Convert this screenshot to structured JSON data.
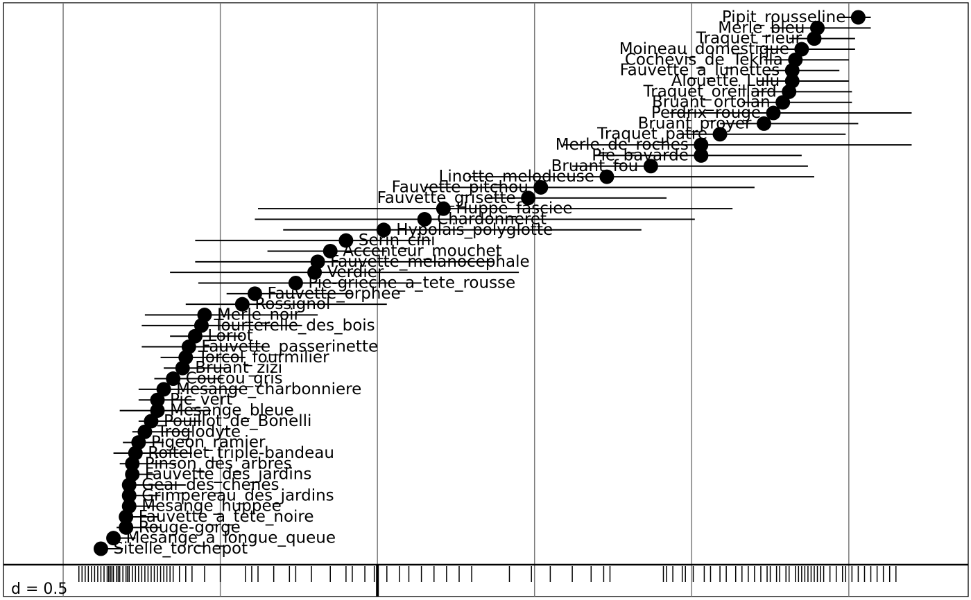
{
  "chart_data": {
    "type": "scatter",
    "scale_label": "d = 0.5",
    "grid": true,
    "x_gridlines": [
      -2.0,
      -1.5,
      -1.0,
      -0.5,
      0.0,
      0.5
    ],
    "xlim": [
      -2.19,
      0.88
    ],
    "species": [
      {
        "name": "Pipit_rousseline",
        "score": 0.53,
        "low": 0.47,
        "high": 0.57,
        "label_side": "left"
      },
      {
        "name": "Merle_bleu",
        "score": 0.4,
        "low": 0.25,
        "high": 0.57,
        "label_side": "left"
      },
      {
        "name": "Traquet_rieur",
        "score": 0.39,
        "low": 0.31,
        "high": 0.52,
        "label_side": "left"
      },
      {
        "name": "Moineau_domestique",
        "score": 0.35,
        "low": 0.23,
        "high": 0.52,
        "label_side": "left"
      },
      {
        "name": "Cochevis_de_Tekhla",
        "score": 0.33,
        "low": 0.23,
        "high": 0.5,
        "label_side": "left"
      },
      {
        "name": "Fauvette_a_lunettes",
        "score": 0.32,
        "low": 0.24,
        "high": 0.47,
        "label_side": "left"
      },
      {
        "name": "Alouette_Lulu",
        "score": 0.32,
        "low": 0.21,
        "high": 0.5,
        "label_side": "left"
      },
      {
        "name": "Traquet_oreillard",
        "score": 0.31,
        "low": 0.19,
        "high": 0.51,
        "label_side": "left"
      },
      {
        "name": "Bruant_ortolan",
        "score": 0.29,
        "low": 0.16,
        "high": 0.51,
        "label_side": "left"
      },
      {
        "name": "Perdrix_rouge",
        "score": 0.26,
        "low": -0.07,
        "high": 0.7,
        "label_side": "left"
      },
      {
        "name": "Bruant_proyer",
        "score": 0.23,
        "low": 0.09,
        "high": 0.53,
        "label_side": "left"
      },
      {
        "name": "Traquet_patre",
        "score": 0.09,
        "low": -0.04,
        "high": 0.49,
        "label_side": "left"
      },
      {
        "name": "Merle_de_roches",
        "score": 0.03,
        "low": -0.41,
        "high": 0.7,
        "label_side": "left"
      },
      {
        "name": "Pie_bavarde",
        "score": 0.03,
        "low": -0.31,
        "high": 0.35,
        "label_side": "left"
      },
      {
        "name": "Bruant_fou",
        "score": -0.13,
        "low": -0.38,
        "high": 0.37,
        "label_side": "left"
      },
      {
        "name": "Linotte_melodieuse",
        "score": -0.27,
        "low": -0.71,
        "high": 0.39,
        "label_side": "left"
      },
      {
        "name": "Fauvette_pitchou",
        "score": -0.48,
        "low": -0.85,
        "high": 0.2,
        "label_side": "left"
      },
      {
        "name": "Fauvette_grisette",
        "score": -0.52,
        "low": -0.65,
        "high": -0.08,
        "label_side": "left"
      },
      {
        "name": "Huppe_fasciee",
        "score": -0.79,
        "low": -1.38,
        "high": 0.13,
        "label_side": "right"
      },
      {
        "name": "Chardonneret",
        "score": -0.85,
        "low": -1.39,
        "high": 0.01,
        "label_side": "right"
      },
      {
        "name": "Hypolais_polyglotte",
        "score": -0.98,
        "low": -1.3,
        "high": -0.16,
        "label_side": "right"
      },
      {
        "name": "Serin_cini",
        "score": -1.1,
        "low": -1.58,
        "high": -0.83,
        "label_side": "right"
      },
      {
        "name": "Accenteur_mouchet",
        "score": -1.15,
        "low": -1.35,
        "high": -0.97,
        "label_side": "right"
      },
      {
        "name": "Fauvette_melanocephale",
        "score": -1.19,
        "low": -1.58,
        "high": -0.63,
        "label_side": "right"
      },
      {
        "name": "Verdier",
        "score": -1.2,
        "low": -1.66,
        "high": -0.55,
        "label_side": "right"
      },
      {
        "name": "Pie-grieche_a_tete_rousse",
        "score": -1.26,
        "low": -1.57,
        "high": -0.86,
        "label_side": "right"
      },
      {
        "name": "Fauvette_orphee",
        "score": -1.39,
        "low": -1.48,
        "high": -1.08,
        "label_side": "right"
      },
      {
        "name": "Rossignol",
        "score": -1.43,
        "low": -1.61,
        "high": -0.97,
        "label_side": "right"
      },
      {
        "name": "Merle_noir",
        "score": -1.55,
        "low": -1.74,
        "high": -1.19,
        "label_side": "right"
      },
      {
        "name": "Tourterelle_des_bois",
        "score": -1.56,
        "low": -1.75,
        "high": -1.24,
        "label_side": "right"
      },
      {
        "name": "Loriot",
        "score": -1.58,
        "low": -1.66,
        "high": -1.43,
        "label_side": "right"
      },
      {
        "name": "Fauvette_passerinette",
        "score": -1.6,
        "low": -1.75,
        "high": -1.36,
        "label_side": "right"
      },
      {
        "name": "Torcol_fourmilier",
        "score": -1.61,
        "low": -1.69,
        "high": -1.42,
        "label_side": "right"
      },
      {
        "name": "Bruant_zizi",
        "score": -1.62,
        "low": -1.68,
        "high": -1.48,
        "label_side": "right"
      },
      {
        "name": "Coucou_gris",
        "score": -1.65,
        "low": -1.71,
        "high": -1.49,
        "label_side": "right"
      },
      {
        "name": "Mesange_charbonniere",
        "score": -1.68,
        "low": -1.76,
        "high": -1.44,
        "label_side": "right"
      },
      {
        "name": "Pic_vert",
        "score": -1.7,
        "low": -1.76,
        "high": -1.58,
        "label_side": "right"
      },
      {
        "name": "Mesange_bleue",
        "score": -1.7,
        "low": -1.82,
        "high": -1.53,
        "label_side": "right"
      },
      {
        "name": "Pouillot_de_Bonelli",
        "score": -1.72,
        "low": -1.76,
        "high": -1.56,
        "label_side": "right"
      },
      {
        "name": "Troglodyte",
        "score": -1.74,
        "low": -1.78,
        "high": -1.59,
        "label_side": "right"
      },
      {
        "name": "Pigeon_ramier",
        "score": -1.76,
        "low": -1.81,
        "high": -1.68,
        "label_side": "right"
      },
      {
        "name": "Roitelet_triple-bandeau",
        "score": -1.77,
        "low": -1.84,
        "high": -1.59,
        "label_side": "right"
      },
      {
        "name": "Pinson_des_arbres",
        "score": -1.78,
        "low": -1.82,
        "high": -1.64,
        "label_side": "right"
      },
      {
        "name": "Fauvette_des_jardins",
        "score": -1.78,
        "low": -1.79,
        "high": -1.71,
        "label_side": "right"
      },
      {
        "name": "Geai_des_chenes",
        "score": -1.79,
        "low": -1.81,
        "high": -1.61,
        "label_side": "right"
      },
      {
        "name": "Grimpereau_des_jardins",
        "score": -1.79,
        "low": -1.8,
        "high": -1.69,
        "label_side": "right"
      },
      {
        "name": "Mesange_huppee",
        "score": -1.79,
        "low": -1.81,
        "high": -1.7,
        "label_side": "right"
      },
      {
        "name": "Fauvette_a_tete_noire",
        "score": -1.8,
        "low": -1.81,
        "high": -1.7,
        "label_side": "right"
      },
      {
        "name": "Rouge-gorge",
        "score": -1.8,
        "low": -1.83,
        "high": -1.69,
        "label_side": "right"
      },
      {
        "name": "Mesange_a_longue_queue",
        "score": -1.84,
        "low": -1.86,
        "high": -1.77,
        "label_side": "right"
      },
      {
        "name": "Sitelle_torchepot",
        "score": -1.88,
        "low": -1.89,
        "high": -1.81,
        "label_side": "right"
      }
    ],
    "rug": [
      -1.95,
      -1.94,
      -1.93,
      -1.92,
      -1.91,
      -1.9,
      -1.89,
      -1.88,
      -1.87,
      -1.86,
      -1.855,
      -1.85,
      -1.845,
      -1.84,
      -1.83,
      -1.825,
      -1.82,
      -1.81,
      -1.8,
      -1.795,
      -1.79,
      -1.78,
      -1.77,
      -1.76,
      -1.75,
      -1.74,
      -1.73,
      -1.72,
      -1.71,
      -1.7,
      -1.69,
      -1.68,
      -1.67,
      -1.66,
      -1.65,
      -1.63,
      -1.61,
      -1.59,
      -1.55,
      -1.5,
      -1.42,
      -1.4,
      -1.38,
      -1.33,
      -1.28,
      -1.26,
      -1.21,
      -1.15,
      -1.1,
      -1.08,
      -1.04,
      -1.01,
      -0.97,
      -0.93,
      -0.9,
      -0.86,
      -0.82,
      -0.78,
      -0.74,
      -0.7,
      -0.58,
      -0.51,
      -0.45,
      -0.38,
      -0.32,
      -0.28,
      -0.26,
      -0.09,
      -0.08,
      -0.06,
      -0.03,
      -0.02,
      0.005,
      0.04,
      0.06,
      0.09,
      0.11,
      0.14,
      0.16,
      0.18,
      0.2,
      0.22,
      0.24,
      0.25,
      0.27,
      0.28,
      0.3,
      0.31,
      0.33,
      0.34,
      0.35,
      0.36,
      0.37,
      0.38,
      0.39,
      0.4,
      0.41,
      0.42,
      0.44,
      0.46,
      0.48,
      0.49,
      0.51,
      0.53,
      0.55,
      0.57,
      0.59,
      0.61,
      0.63,
      0.65
    ],
    "rug_marker": -1.0
  }
}
